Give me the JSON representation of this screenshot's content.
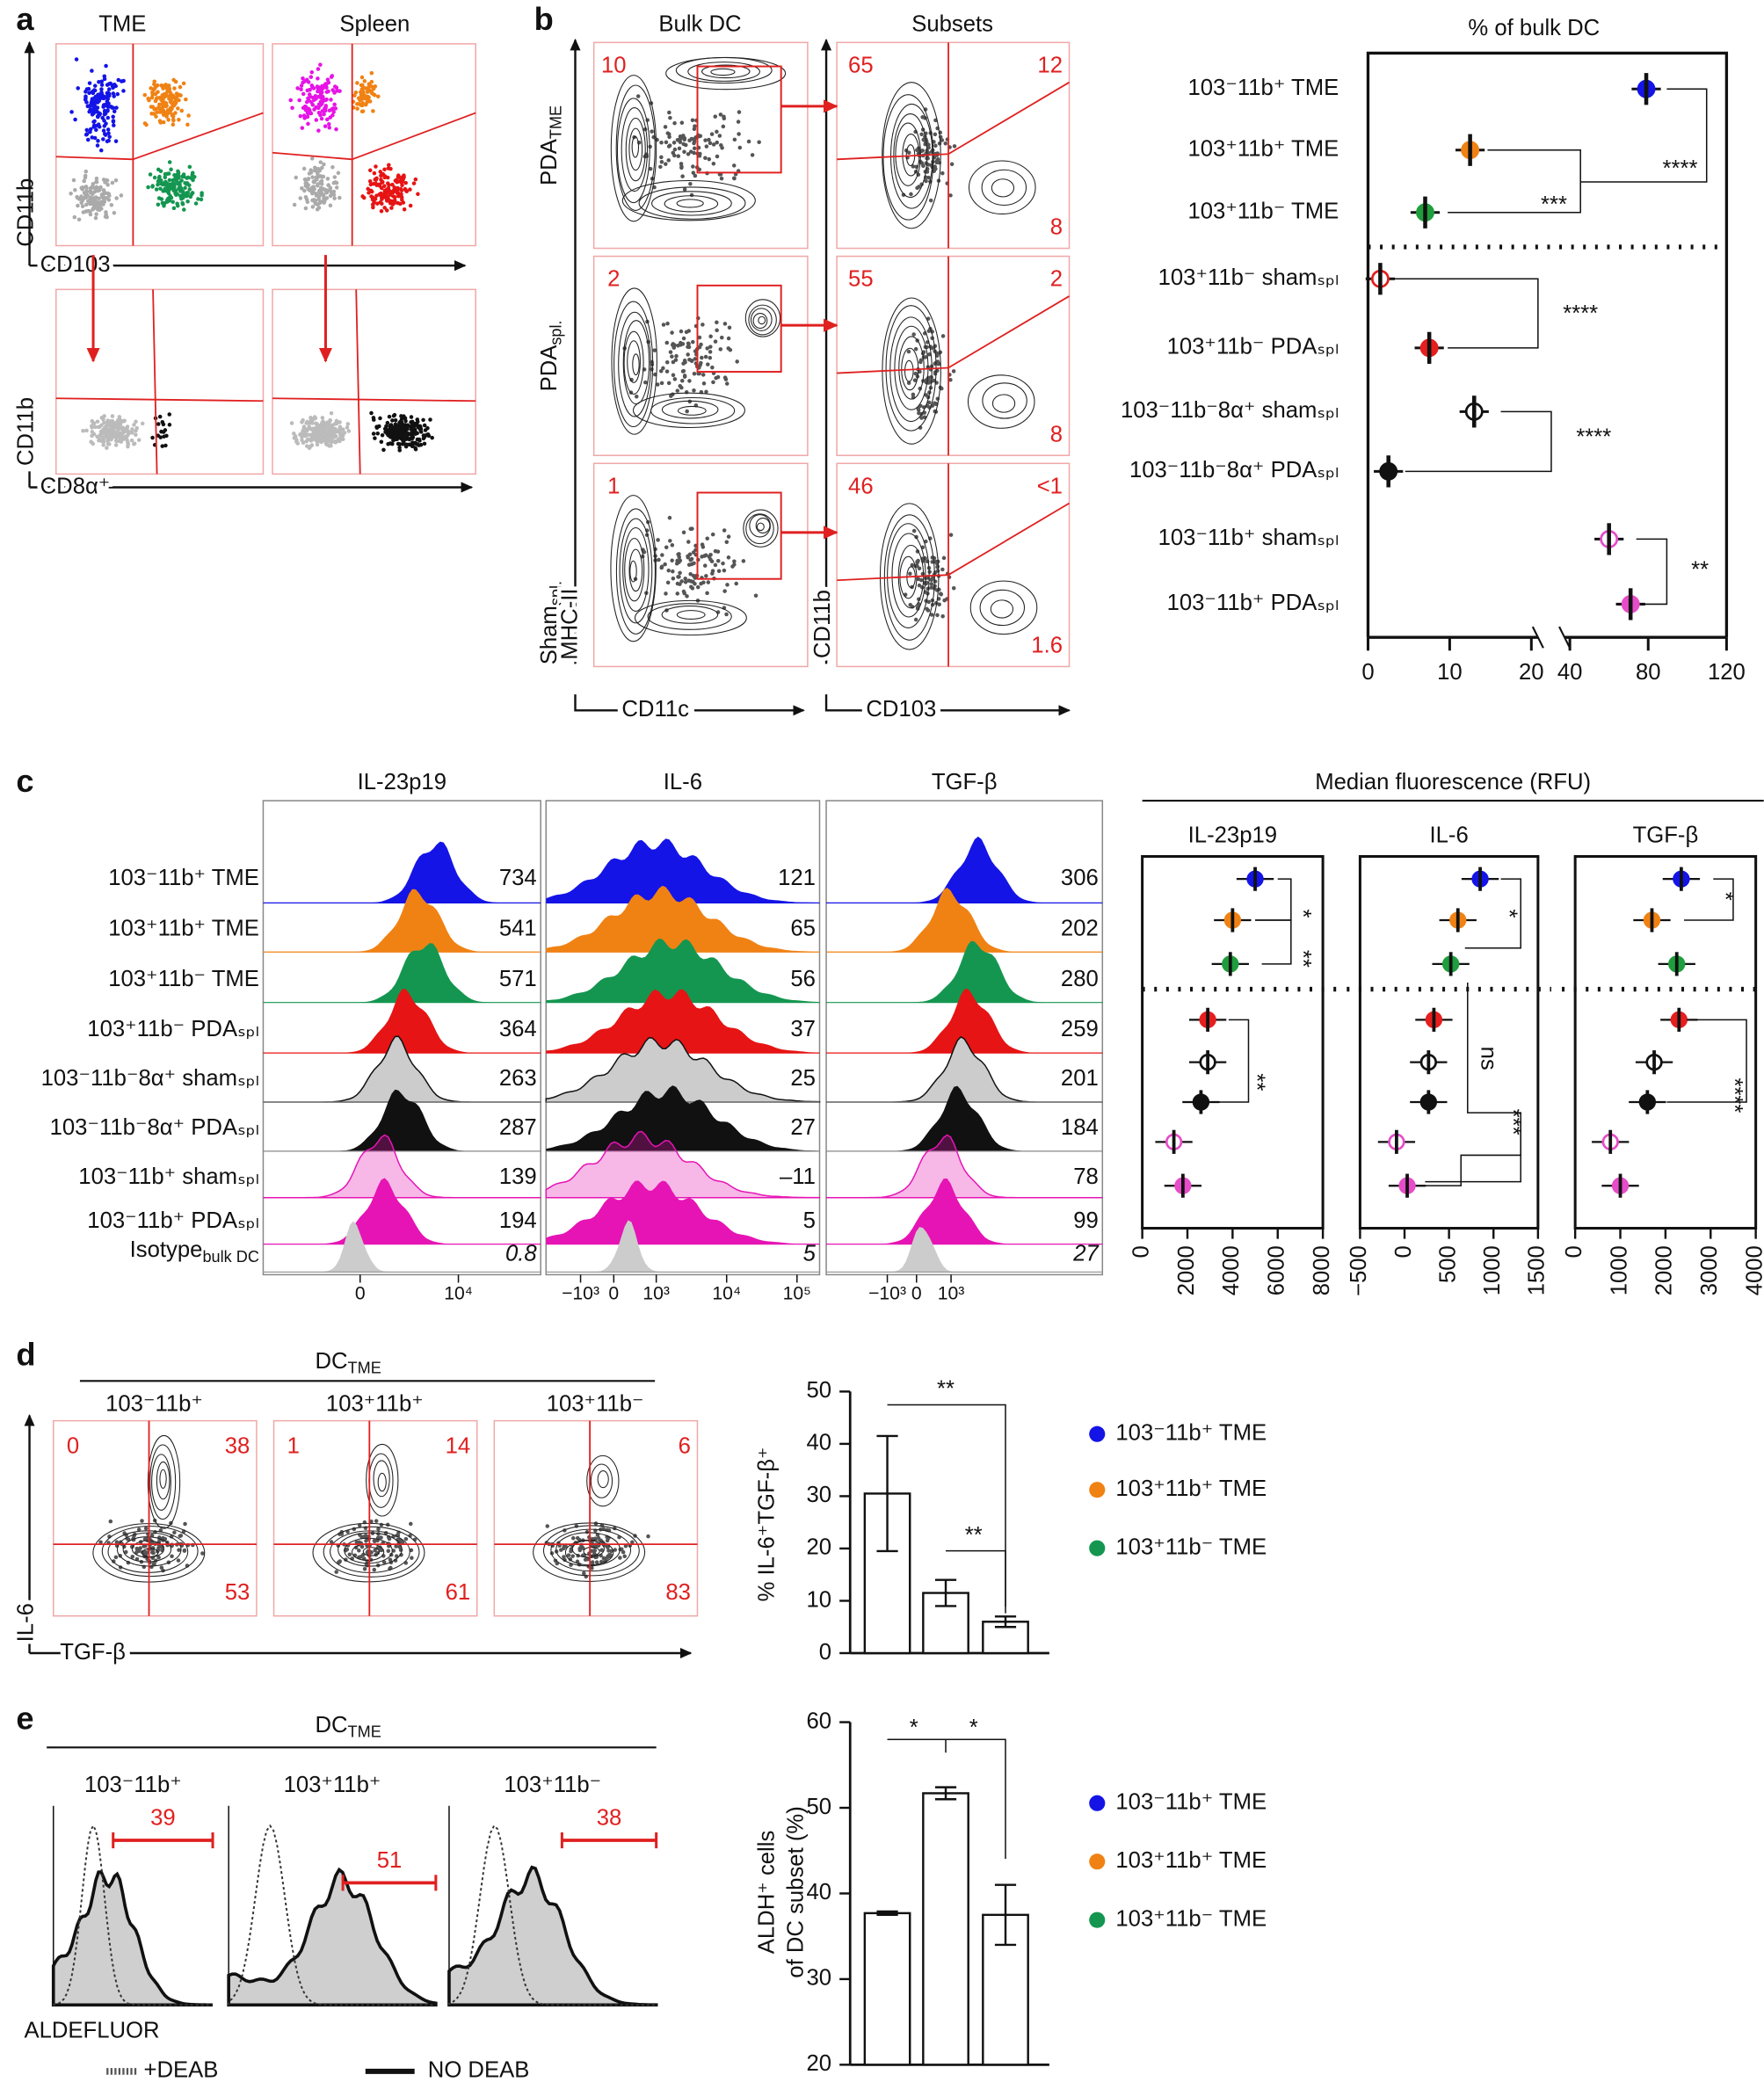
{
  "panel_labels": [
    "a",
    "b",
    "c",
    "d",
    "e"
  ],
  "a": {
    "columns": [
      "TME",
      "Spleen"
    ],
    "y_axis_top": "CD11b",
    "x_axis_top": "CD103",
    "y_axis_bottom": "CD11b",
    "x_axis_bottom": "CD8α⁺"
  },
  "b": {
    "columns": [
      "Bulk DC",
      "Subsets"
    ],
    "rows": [
      {
        "name": "PDA",
        "sub": "TME"
      },
      {
        "name": "PDA",
        "sub": "spl."
      },
      {
        "name": "Sham",
        "sub": "spl."
      }
    ],
    "y_axis_left": "MHC-II",
    "y_axis_right": "CD11b",
    "x_axis_left": "CD11c",
    "x_axis_right": "CD103",
    "bulk_gates": [
      "10",
      "2",
      "1"
    ],
    "subset_gates": [
      [
        "65",
        "12",
        "8"
      ],
      [
        "55",
        "2",
        "8"
      ],
      [
        "46",
        "<1",
        "1.6"
      ]
    ]
  },
  "c": {
    "columns": [
      "IL-23p19",
      "IL-6",
      "TGF-β"
    ],
    "rows": [
      "103⁻11b⁺ TME",
      "103⁺11b⁺ TME",
      "103⁺11b⁻ TME",
      "103⁺11b⁻ PDAₛₚₗ",
      "103⁻11b⁻8α⁺ shamₛₚₗ",
      "103⁻11b⁻8α⁺ PDAₛₚₗ",
      "103⁻11b⁺ shamₛₚₗ",
      "103⁻11b⁺ PDAₛₚₗ"
    ],
    "isotype": {
      "name": "Isotype",
      "sub": "bulk DC"
    },
    "row_colors": [
      "#1414e6",
      "#f08214",
      "#149650",
      "#e61414",
      "#111111",
      "#111111",
      "#e614b4",
      "#e614b4",
      "#999999"
    ],
    "values": [
      [
        "734",
        "121",
        "306"
      ],
      [
        "541",
        "65",
        "202"
      ],
      [
        "571",
        "56",
        "280"
      ],
      [
        "364",
        "37",
        "259"
      ],
      [
        "263",
        "25",
        "201"
      ],
      [
        "287",
        "27",
        "184"
      ],
      [
        "139",
        "–11",
        "78"
      ],
      [
        "194",
        "5",
        "99"
      ],
      [
        "0.8",
        "5",
        "27"
      ]
    ],
    "axis_ticks": [
      [
        "0",
        "10⁴"
      ],
      [
        "−10³",
        "0",
        "10³",
        "10⁴",
        "10⁵"
      ],
      [
        "−10³",
        "0",
        "10³"
      ]
    ],
    "mfi_title": "Median fluorescence (RFU)"
  },
  "d": {
    "group": "DC",
    "group_sub": "TME",
    "subsets": [
      "103⁻11b⁺",
      "103⁺11b⁺",
      "103⁺11b⁻"
    ],
    "subset_colors": [
      "#1414e6",
      "#f08214",
      "#149650"
    ],
    "y_axis": "IL-6",
    "x_axis": "TGF-β",
    "gates": [
      {
        "top_left": "0",
        "top_right": "38",
        "bottom_right": "53"
      },
      {
        "top_left": "1",
        "top_right": "14",
        "bottom_right": "61"
      },
      {
        "top_right": "6",
        "bottom_right": "83"
      }
    ]
  },
  "e": {
    "group": "DC",
    "group_sub": "TME",
    "subsets": [
      "103⁻11b⁺",
      "103⁺11b⁺",
      "103⁺11b⁻"
    ],
    "subset_colors": [
      "#1414e6",
      "#f08214",
      "#149650"
    ],
    "x_axis": "ALDEFLUOR",
    "gates": [
      "39",
      "51",
      "38"
    ],
    "legend": [
      "+DEAB",
      "NO DEAB"
    ]
  },
  "chart_data": [
    {
      "type": "dot",
      "title": "% of bulk DC",
      "categories": [
        "103⁻11b⁺ TME",
        "103⁺11b⁺ TME",
        "103⁺11b⁻ TME",
        "103⁺11b⁻ shamₛₚₗ",
        "103⁺11b⁻ PDAₛₚₗ",
        "103⁻11b⁻8α⁺ shamₛₚₗ",
        "103⁻11b⁻8α⁺ PDAₛₚₗ",
        "103⁻11b⁺ shamₛₚₗ",
        "103⁻11b⁺ PDAₛₚₗ"
      ],
      "values": [
        79,
        12.5,
        7,
        1.5,
        7.5,
        13,
        2.5,
        60,
        71
      ],
      "colors": [
        "#1414e6",
        "#f08214",
        "#1e9e3c",
        "#e61e1e",
        "#e61e1e",
        "#111111",
        "#111111",
        "#e64dc8",
        "#e64dc8"
      ],
      "filled": [
        true,
        true,
        true,
        false,
        true,
        false,
        true,
        false,
        true
      ],
      "xlim_segments": [
        [
          0,
          20
        ],
        [
          40,
          120
        ]
      ],
      "xticks": [
        0,
        10,
        20,
        40,
        80,
        120
      ],
      "annotations": [
        "****",
        "***",
        "****",
        "****",
        "**"
      ]
    },
    {
      "type": "dot",
      "title": "IL-23p19",
      "values": [
        5000,
        4000,
        3900,
        2900,
        2900,
        2600,
        1400,
        1800
      ],
      "colors": [
        "#1414e6",
        "#f08214",
        "#1e9e3c",
        "#e61e1e",
        "#111111",
        "#111111",
        "#e64dc8",
        "#e64dc8"
      ],
      "filled": [
        true,
        true,
        true,
        true,
        false,
        true,
        false,
        true
      ],
      "xlim": [
        0,
        8000
      ],
      "xticks": [
        0,
        2000,
        4000,
        6000,
        8000
      ],
      "annotations": [
        "*",
        "**",
        "**"
      ]
    },
    {
      "type": "dot",
      "title": "IL-6",
      "values": [
        850,
        600,
        520,
        330,
        270,
        270,
        -90,
        30
      ],
      "colors": [
        "#1414e6",
        "#f08214",
        "#1e9e3c",
        "#e61e1e",
        "#111111",
        "#111111",
        "#e64dc8",
        "#e64dc8"
      ],
      "filled": [
        true,
        true,
        true,
        true,
        false,
        true,
        false,
        true
      ],
      "xlim": [
        -500,
        1500
      ],
      "xticks": [
        {
          "value": -500,
          "label": "−500"
        },
        0,
        500,
        1000,
        1500
      ],
      "annotations": [
        "*",
        "ns",
        "***"
      ]
    },
    {
      "type": "dot",
      "title": "TGF-β",
      "values": [
        2350,
        1700,
        2250,
        2300,
        1750,
        1600,
        780,
        1000
      ],
      "colors": [
        "#1414e6",
        "#f08214",
        "#1e9e3c",
        "#e61e1e",
        "#111111",
        "#111111",
        "#e64dc8",
        "#e64dc8"
      ],
      "filled": [
        true,
        true,
        true,
        true,
        false,
        true,
        false,
        true
      ],
      "xlim": [
        0,
        4000
      ],
      "xticks": [
        0,
        1000,
        2000,
        3000,
        4000
      ],
      "annotations": [
        "*",
        "****"
      ]
    },
    {
      "type": "bar",
      "y_label": "% IL-6⁺TGF-β⁺",
      "categories": [
        "103⁻11b⁺ TME",
        "103⁺11b⁺ TME",
        "103⁺11b⁻ TME"
      ],
      "colors": [
        "#1414e6",
        "#f08214",
        "#149650"
      ],
      "values": [
        30.5,
        11.5,
        6
      ],
      "errors": [
        11,
        2.5,
        1
      ],
      "ylim": [
        0,
        50
      ],
      "yticks": [
        0,
        10,
        20,
        30,
        40,
        50
      ],
      "annotations": [
        "**",
        "**"
      ]
    },
    {
      "type": "bar",
      "y_label": [
        "ALDH⁺ cells",
        "of DC subset (%)"
      ],
      "categories": [
        "103⁻11b⁺ TME",
        "103⁺11b⁺ TME",
        "103⁺11b⁻ TME"
      ],
      "colors": [
        "#1414e6",
        "#f08214",
        "#149650"
      ],
      "values": [
        37.7,
        51.7,
        37.5
      ],
      "errors": [
        0.2,
        0.7,
        3.5
      ],
      "ylim": [
        20,
        60
      ],
      "yticks": [
        20,
        30,
        40,
        50,
        60
      ],
      "annotations": [
        "*",
        "*"
      ]
    }
  ]
}
